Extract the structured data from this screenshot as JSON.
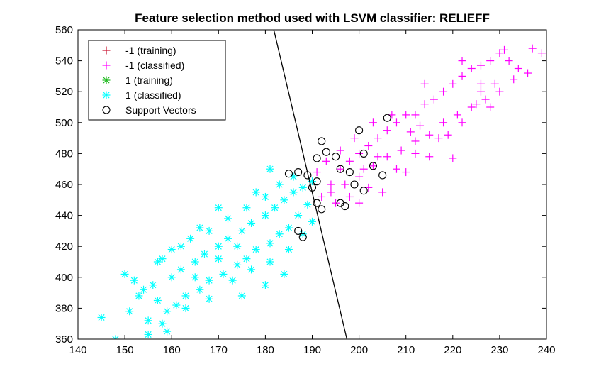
{
  "chart_data": {
    "type": "scatter",
    "title": "Feature selection method used with LSVM classifier: RELIEFF",
    "xlabel": "",
    "ylabel": "",
    "xlim": [
      140,
      240
    ],
    "ylim": [
      360,
      560
    ],
    "xticks": [
      140,
      150,
      160,
      170,
      180,
      190,
      200,
      210,
      220,
      230,
      240
    ],
    "yticks": [
      360,
      380,
      400,
      420,
      440,
      460,
      480,
      500,
      520,
      540,
      560
    ],
    "grid": false,
    "legend_position": "top-left",
    "legend": [
      {
        "label": "-1 (training)",
        "marker": "plus",
        "color": "#c8102e"
      },
      {
        "label": "-1 (classified)",
        "marker": "plus",
        "color": "#ff00ff"
      },
      {
        "label": "1 (training)",
        "marker": "asterisk",
        "color": "#22bb22"
      },
      {
        "label": "1 (classified)",
        "marker": "asterisk",
        "color": "#00ffff"
      },
      {
        "label": "Support Vectors",
        "marker": "circle",
        "color": "#000000"
      }
    ],
    "decision_boundary": {
      "points": [
        [
          181.8,
          560
        ],
        [
          197.4,
          360
        ]
      ],
      "color": "#000000"
    },
    "series": [
      {
        "name": "-1 (classified)",
        "marker": "plus",
        "color": "#ff00ff",
        "points": [
          [
            192,
            452
          ],
          [
            194,
            460
          ],
          [
            196,
            470
          ],
          [
            198,
            475
          ],
          [
            200,
            480
          ],
          [
            202,
            485
          ],
          [
            204,
            490
          ],
          [
            206,
            495
          ],
          [
            208,
            500
          ],
          [
            210,
            505
          ],
          [
            212,
            505
          ],
          [
            214,
            512
          ],
          [
            216,
            515
          ],
          [
            218,
            520
          ],
          [
            220,
            525
          ],
          [
            222,
            530
          ],
          [
            224,
            535
          ],
          [
            226,
            537
          ],
          [
            228,
            540
          ],
          [
            230,
            545
          ],
          [
            231,
            547
          ],
          [
            232,
            540
          ],
          [
            234,
            535
          ],
          [
            237,
            548
          ],
          [
            239,
            545
          ],
          [
            236,
            532
          ],
          [
            233,
            528
          ],
          [
            229,
            525
          ],
          [
            226,
            520
          ],
          [
            224,
            510
          ],
          [
            221,
            505
          ],
          [
            218,
            500
          ],
          [
            215,
            492
          ],
          [
            212,
            488
          ],
          [
            209,
            482
          ],
          [
            206,
            478
          ],
          [
            203,
            472
          ],
          [
            200,
            465
          ],
          [
            197,
            460
          ],
          [
            194,
            455
          ],
          [
            220,
            477
          ],
          [
            200,
            448
          ],
          [
            205,
            455
          ],
          [
            210,
            468
          ],
          [
            215,
            478
          ],
          [
            225,
            512
          ],
          [
            230,
            520
          ],
          [
            219,
            492
          ],
          [
            213,
            498
          ],
          [
            207,
            505
          ],
          [
            203,
            500
          ],
          [
            199,
            490
          ],
          [
            196,
            482
          ],
          [
            193,
            475
          ],
          [
            191,
            468
          ],
          [
            195,
            448
          ],
          [
            198,
            452
          ],
          [
            202,
            458
          ],
          [
            208,
            470
          ],
          [
            212,
            480
          ],
          [
            217,
            490
          ],
          [
            222,
            500
          ],
          [
            227,
            515
          ],
          [
            214,
            525
          ],
          [
            222,
            540
          ],
          [
            226,
            525
          ],
          [
            228,
            510
          ],
          [
            211,
            494
          ],
          [
            204,
            478
          ],
          [
            201,
            470
          ]
        ]
      },
      {
        "name": "1 (classified)",
        "marker": "asterisk",
        "color": "#00ffff",
        "points": [
          [
            145,
            374
          ],
          [
            148,
            360
          ],
          [
            151,
            378
          ],
          [
            155,
            363
          ],
          [
            158,
            370
          ],
          [
            153,
            388
          ],
          [
            156,
            395
          ],
          [
            160,
            400
          ],
          [
            162,
            405
          ],
          [
            165,
            410
          ],
          [
            167,
            415
          ],
          [
            170,
            420
          ],
          [
            172,
            425
          ],
          [
            175,
            430
          ],
          [
            177,
            435
          ],
          [
            180,
            440
          ],
          [
            182,
            445
          ],
          [
            184,
            450
          ],
          [
            186,
            455
          ],
          [
            188,
            458
          ],
          [
            190,
            462
          ],
          [
            189,
            447
          ],
          [
            187,
            440
          ],
          [
            185,
            432
          ],
          [
            183,
            428
          ],
          [
            181,
            422
          ],
          [
            178,
            418
          ],
          [
            176,
            412
          ],
          [
            174,
            408
          ],
          [
            171,
            402
          ],
          [
            168,
            398
          ],
          [
            166,
            392
          ],
          [
            163,
            388
          ],
          [
            161,
            382
          ],
          [
            159,
            378
          ],
          [
            157,
            385
          ],
          [
            154,
            392
          ],
          [
            152,
            398
          ],
          [
            150,
            402
          ],
          [
            157,
            410
          ],
          [
            160,
            418
          ],
          [
            164,
            425
          ],
          [
            168,
            430
          ],
          [
            172,
            438
          ],
          [
            176,
            445
          ],
          [
            180,
            452
          ],
          [
            183,
            460
          ],
          [
            181,
            470
          ],
          [
            186,
            465
          ],
          [
            178,
            455
          ],
          [
            170,
            445
          ],
          [
            166,
            432
          ],
          [
            162,
            420
          ],
          [
            158,
            412
          ],
          [
            173,
            398
          ],
          [
            177,
            405
          ],
          [
            181,
            410
          ],
          [
            185,
            418
          ],
          [
            188,
            428
          ],
          [
            190,
            436
          ],
          [
            175,
            388
          ],
          [
            180,
            395
          ],
          [
            184,
            402
          ],
          [
            163,
            380
          ],
          [
            168,
            386
          ],
          [
            155,
            372
          ],
          [
            159,
            365
          ],
          [
            165,
            400
          ],
          [
            170,
            412
          ],
          [
            174,
            420
          ]
        ]
      },
      {
        "name": "Support Vectors",
        "marker": "circle",
        "color": "#000000",
        "points": [
          [
            185,
            467
          ],
          [
            187,
            468
          ],
          [
            189,
            466
          ],
          [
            191,
            477
          ],
          [
            192,
            488
          ],
          [
            193,
            481
          ],
          [
            195,
            478
          ],
          [
            196,
            470
          ],
          [
            198,
            468
          ],
          [
            200,
            495
          ],
          [
            201,
            480
          ],
          [
            203,
            472
          ],
          [
            205,
            466
          ],
          [
            206,
            503
          ],
          [
            196,
            448
          ],
          [
            197,
            446
          ],
          [
            192,
            444
          ],
          [
            191,
            448
          ],
          [
            187,
            430
          ],
          [
            188,
            426
          ],
          [
            190,
            458
          ],
          [
            191,
            462
          ],
          [
            199,
            460
          ],
          [
            201,
            456
          ]
        ]
      }
    ]
  }
}
